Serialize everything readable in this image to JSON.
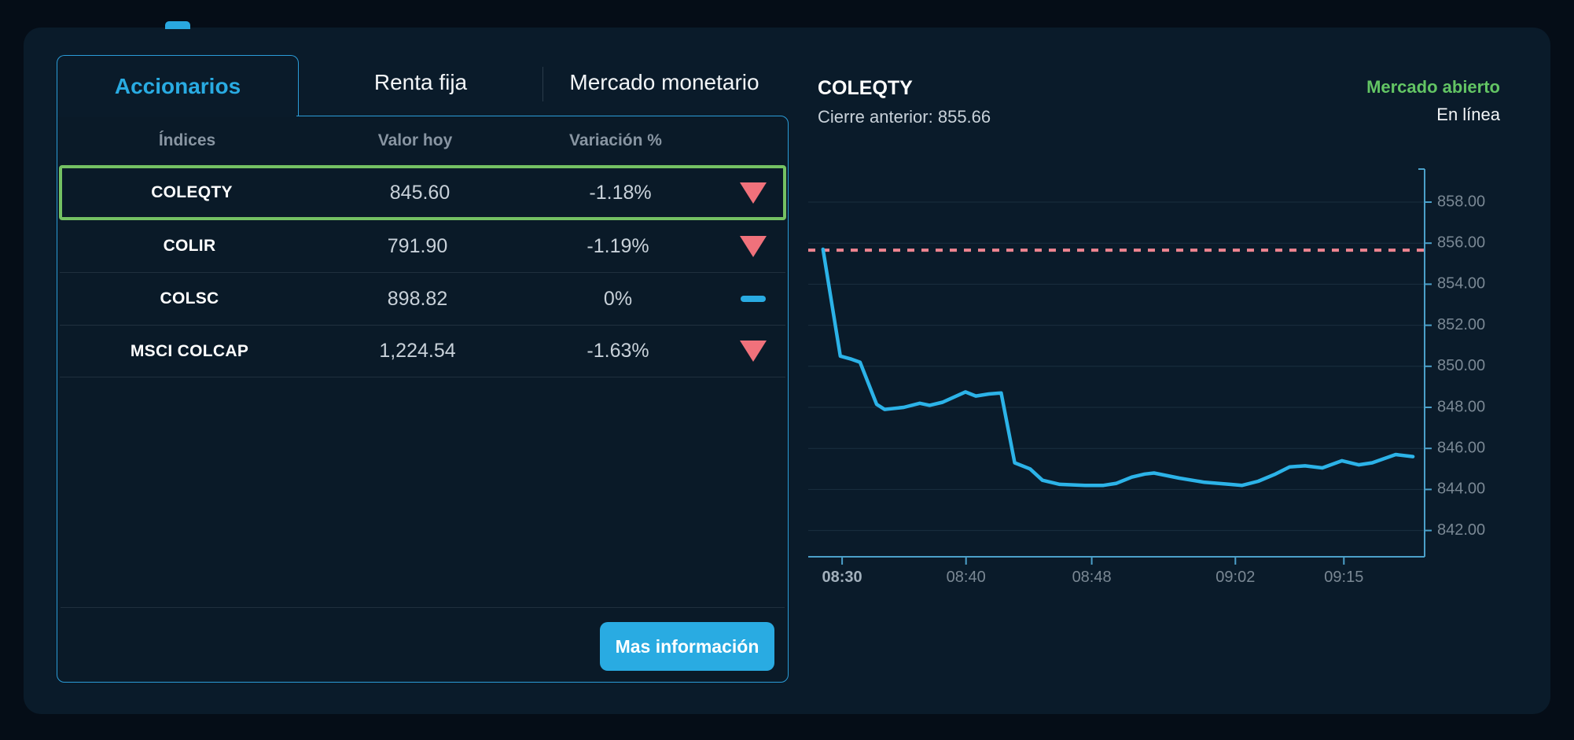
{
  "colors": {
    "accent_cyan": "#29ABE2",
    "card_border": "#2B9CD8",
    "selected_green": "#74C163",
    "status_green": "#63C564",
    "down_red": "#F0717B",
    "ref_dash_pink": "#EE8490",
    "line_blue": "#2CB3E8",
    "axis_blue": "#4BA0C9",
    "grid": "#1B2F3F"
  },
  "tabs": {
    "items": [
      {
        "label": "Accionarios",
        "active": true
      },
      {
        "label": "Renta fija",
        "active": false
      },
      {
        "label": "Mercado monetario",
        "active": false
      }
    ]
  },
  "table": {
    "headers": [
      "Índices",
      "Valor hoy",
      "Variación %"
    ],
    "rows": [
      {
        "name": "COLEQTY",
        "value": "845.60",
        "variation": "-1.18%",
        "direction": "down",
        "selected": true
      },
      {
        "name": "COLIR",
        "value": "791.90",
        "variation": "-1.19%",
        "direction": "down",
        "selected": false
      },
      {
        "name": "COLSC",
        "value": "898.82",
        "variation": "0%",
        "direction": "flat",
        "selected": false
      },
      {
        "name": "MSCI COLCAP",
        "value": "1,224.54",
        "variation": "-1.63%",
        "direction": "down",
        "selected": false
      }
    ],
    "button_label": "Mas información"
  },
  "chart_header": {
    "symbol": "COLEQTY",
    "previous_close_label": "Cierre anterior:",
    "previous_close_value": "855.66",
    "market_status": "Mercado abierto",
    "connection_status": "En línea"
  },
  "chart_data": {
    "type": "line",
    "title": "COLEQTY intraday price",
    "previous_close": 855.66,
    "current_value": 845.6,
    "ylim": [
      840.8,
      859.8
    ],
    "grid": "horizontal",
    "legend": "none",
    "y_ticks": [
      858,
      856,
      854,
      852,
      850,
      848,
      846,
      844,
      842
    ],
    "y_tick_labels": [
      "858.00",
      "856.00",
      "854.00",
      "852.00",
      "850.00",
      "848.00",
      "846.00",
      "844.00",
      "842.00"
    ],
    "x_ticks": [
      {
        "label": "08:30",
        "pos": 0.055,
        "emphasis": true
      },
      {
        "label": "08:40",
        "pos": 0.256,
        "emphasis": false
      },
      {
        "label": "08:48",
        "pos": 0.46,
        "emphasis": false
      },
      {
        "label": "09:02",
        "pos": 0.693,
        "emphasis": false
      },
      {
        "label": "09:15",
        "pos": 0.869,
        "emphasis": false
      }
    ],
    "reference_line": {
      "value": 855.66,
      "style": "dashed",
      "meaning": "previous close"
    },
    "series": [
      {
        "name": "COLEQTY",
        "points": [
          [
            0.024,
            855.7
          ],
          [
            0.052,
            850.5
          ],
          [
            0.07,
            850.35
          ],
          [
            0.084,
            850.2
          ],
          [
            0.111,
            848.15
          ],
          [
            0.124,
            847.9
          ],
          [
            0.155,
            848.0
          ],
          [
            0.181,
            848.2
          ],
          [
            0.197,
            848.1
          ],
          [
            0.218,
            848.25
          ],
          [
            0.255,
            848.75
          ],
          [
            0.272,
            848.55
          ],
          [
            0.293,
            848.65
          ],
          [
            0.313,
            848.7
          ],
          [
            0.335,
            845.3
          ],
          [
            0.36,
            845.0
          ],
          [
            0.38,
            844.45
          ],
          [
            0.408,
            844.25
          ],
          [
            0.449,
            844.2
          ],
          [
            0.479,
            844.2
          ],
          [
            0.5,
            844.3
          ],
          [
            0.525,
            844.6
          ],
          [
            0.546,
            844.75
          ],
          [
            0.561,
            844.8
          ],
          [
            0.602,
            844.55
          ],
          [
            0.643,
            844.35
          ],
          [
            0.684,
            844.25
          ],
          [
            0.704,
            844.2
          ],
          [
            0.73,
            844.4
          ],
          [
            0.758,
            844.75
          ],
          [
            0.781,
            845.1
          ],
          [
            0.806,
            845.15
          ],
          [
            0.834,
            845.05
          ],
          [
            0.866,
            845.4
          ],
          [
            0.893,
            845.2
          ],
          [
            0.915,
            845.3
          ],
          [
            0.953,
            845.7
          ],
          [
            0.981,
            845.6
          ]
        ]
      }
    ]
  }
}
